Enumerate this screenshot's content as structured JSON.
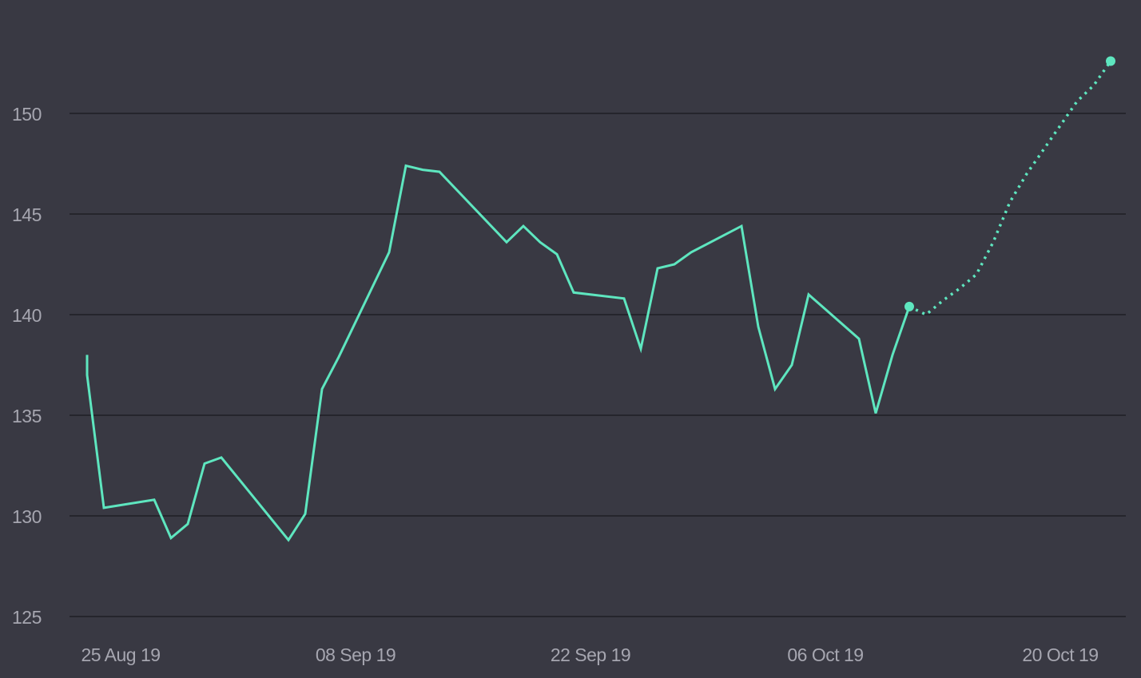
{
  "colors": {
    "background": "#393943",
    "gridline": "#25252c",
    "series": "#5ee6bf",
    "tick_label": "#a6a6b0"
  },
  "chart_data": {
    "type": "line",
    "title": "",
    "xlabel": "",
    "ylabel": "",
    "grid": true,
    "legend": "none",
    "xlim": [
      "2019-08-23",
      "2019-10-23"
    ],
    "ylim": [
      125,
      152.5
    ],
    "y_ticks": [
      125,
      130,
      135,
      140,
      145,
      150
    ],
    "x_ticks": [
      {
        "date": "2019-08-25",
        "label": "25 Aug 19"
      },
      {
        "date": "2019-09-08",
        "label": "08 Sep 19"
      },
      {
        "date": "2019-09-22",
        "label": "22 Sep 19"
      },
      {
        "date": "2019-10-06",
        "label": "06 Oct 19"
      },
      {
        "date": "2019-10-20",
        "label": "20 Oct 19"
      }
    ],
    "series": [
      {
        "style": "solid",
        "points": [
          {
            "x": "2019-08-23",
            "y": 138.0
          },
          {
            "x": "2019-08-23",
            "y": 137.0
          },
          {
            "x": "2019-08-24",
            "y": 130.4
          },
          {
            "x": "2019-08-27",
            "y": 130.8
          },
          {
            "x": "2019-08-28",
            "y": 128.9
          },
          {
            "x": "2019-08-29",
            "y": 129.6
          },
          {
            "x": "2019-08-30",
            "y": 132.6
          },
          {
            "x": "2019-08-31",
            "y": 132.9
          },
          {
            "x": "2019-09-04",
            "y": 128.8
          },
          {
            "x": "2019-09-05",
            "y": 130.1
          },
          {
            "x": "2019-09-06",
            "y": 136.3
          },
          {
            "x": "2019-09-07",
            "y": 137.9
          },
          {
            "x": "2019-09-10",
            "y": 143.1
          },
          {
            "x": "2019-09-11",
            "y": 147.4
          },
          {
            "x": "2019-09-12",
            "y": 147.2
          },
          {
            "x": "2019-09-13",
            "y": 147.1
          },
          {
            "x": "2019-09-17",
            "y": 143.6
          },
          {
            "x": "2019-09-18",
            "y": 144.4
          },
          {
            "x": "2019-09-19",
            "y": 143.6
          },
          {
            "x": "2019-09-20",
            "y": 143.0
          },
          {
            "x": "2019-09-21",
            "y": 141.1
          },
          {
            "x": "2019-09-24",
            "y": 140.8
          },
          {
            "x": "2019-09-25",
            "y": 138.3
          },
          {
            "x": "2019-09-26",
            "y": 142.3
          },
          {
            "x": "2019-09-27",
            "y": 142.5
          },
          {
            "x": "2019-09-28",
            "y": 143.1
          },
          {
            "x": "2019-10-01",
            "y": 144.4
          },
          {
            "x": "2019-10-02",
            "y": 139.4
          },
          {
            "x": "2019-10-03",
            "y": 136.3
          },
          {
            "x": "2019-10-04",
            "y": 137.5
          },
          {
            "x": "2019-10-05",
            "y": 141.0
          },
          {
            "x": "2019-10-08",
            "y": 138.8
          },
          {
            "x": "2019-10-09",
            "y": 135.1
          },
          {
            "x": "2019-10-10",
            "y": 138.0
          },
          {
            "x": "2019-10-11",
            "y": 140.4
          }
        ]
      },
      {
        "style": "dotted",
        "points": [
          {
            "x": "2019-10-11",
            "y": 140.4
          },
          {
            "x": "2019-10-12",
            "y": 140.0
          },
          {
            "x": "2019-10-13",
            "y": 140.7
          },
          {
            "x": "2019-10-14",
            "y": 141.3
          },
          {
            "x": "2019-10-15",
            "y": 142.0
          },
          {
            "x": "2019-10-16",
            "y": 143.6
          },
          {
            "x": "2019-10-17",
            "y": 145.6
          },
          {
            "x": "2019-10-18",
            "y": 147.0
          },
          {
            "x": "2019-10-19",
            "y": 148.2
          },
          {
            "x": "2019-10-20",
            "y": 149.4
          },
          {
            "x": "2019-10-21",
            "y": 150.6
          },
          {
            "x": "2019-10-22",
            "y": 151.4
          },
          {
            "x": "2019-10-23",
            "y": 152.6
          }
        ]
      }
    ],
    "markers": [
      {
        "x": "2019-10-11",
        "y": 140.4
      },
      {
        "x": "2019-10-23",
        "y": 152.6
      }
    ]
  }
}
